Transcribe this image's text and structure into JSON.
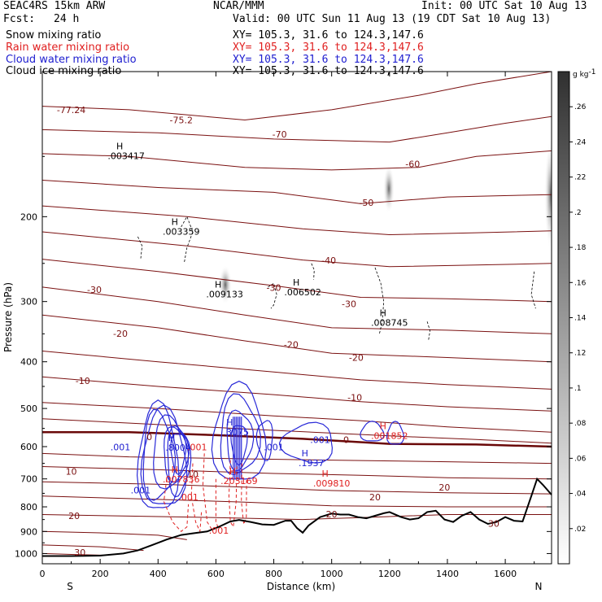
{
  "header": {
    "model": "SEAC4RS 15km ARW",
    "org": "NCAR/MMM",
    "init": "Init: 00 UTC Sat 10 Aug 13",
    "fcst_label": "Fcst:",
    "fcst_value": "24 h",
    "valid": "Valid: 00 UTC Sun 11 Aug 13 (19 CDT Sat 10 Aug 13)"
  },
  "legend": [
    {
      "label": "Snow mixing ratio",
      "xy": "XY= 105.3, 31.6 to 124.3,147.6",
      "color": "#000000"
    },
    {
      "label": "Rain water mixing ratio",
      "xy": "XY= 105.3, 31.6 to 124.3,147.6",
      "color": "#e02020"
    },
    {
      "label": "Cloud water mixing ratio",
      "xy": "XY= 105.3, 31.6 to 124.3,147.6",
      "color": "#2020d0"
    },
    {
      "label": "Cloud ice mixing ratio",
      "xy": "XY= 105.3, 31.6 to 124.3,147.6",
      "color": "#000000"
    }
  ],
  "colorbar": {
    "unit": "g kg",
    "unit_exp": "-1",
    "ticks": [
      ".26",
      ".24",
      ".22",
      ".2",
      ".18",
      ".16",
      ".14",
      ".12",
      ".1",
      ".08",
      ".06",
      ".04",
      ".02"
    ]
  },
  "chart_data": {
    "type": "cross-section",
    "xlabel": "Distance (km)",
    "ylabel": "Pressure (hPa)",
    "xlim": [
      0,
      1760
    ],
    "ylim": [
      1050,
      100
    ],
    "y_scale": "log",
    "x_ticks": [
      "0",
      "200",
      "400",
      "600",
      "800",
      "1000",
      "1200",
      "1400",
      "1600"
    ],
    "y_ticks": [
      "200",
      "300",
      "400",
      "500",
      "600",
      "700",
      "800",
      "900",
      "1000"
    ],
    "endpoint_left": "S",
    "endpoint_right": "N",
    "temperature_contours": [
      {
        "label": "-77.24",
        "x": 100,
        "y": 122
      },
      {
        "label": "-75.2",
        "x": 480,
        "y": 128
      },
      {
        "label": "-70",
        "x": 820,
        "y": 137
      },
      {
        "label": "-60",
        "x": 1280,
        "y": 158
      },
      {
        "label": "-50",
        "x": 1120,
        "y": 190
      },
      {
        "label": "-40",
        "x": 990,
        "y": 250
      },
      {
        "label": "-30",
        "x": 180,
        "y": 288
      },
      {
        "label": "-30",
        "x": 800,
        "y": 285
      },
      {
        "label": "-30",
        "x": 1060,
        "y": 308
      },
      {
        "label": "-20",
        "x": 270,
        "y": 355
      },
      {
        "label": "-20",
        "x": 860,
        "y": 374
      },
      {
        "label": "-20",
        "x": 1085,
        "y": 398
      },
      {
        "label": "-10",
        "x": 140,
        "y": 445
      },
      {
        "label": "-10",
        "x": 1080,
        "y": 482
      },
      {
        "label": "0",
        "x": 370,
        "y": 582
      },
      {
        "label": "0",
        "x": 1050,
        "y": 590
      },
      {
        "label": "10",
        "x": 100,
        "y": 686
      },
      {
        "label": "10",
        "x": 520,
        "y": 695
      },
      {
        "label": "20",
        "x": 110,
        "y": 848
      },
      {
        "label": "20",
        "x": 1000,
        "y": 842
      },
      {
        "label": "20",
        "x": 1150,
        "y": 775
      },
      {
        "label": "20",
        "x": 1390,
        "y": 740
      },
      {
        "label": "30",
        "x": 130,
        "y": 1010
      },
      {
        "label": "30",
        "x": 1560,
        "y": 880
      }
    ],
    "maxima": [
      {
        "label": ".003417",
        "x": 290,
        "y": 152,
        "color": "#000000"
      },
      {
        "label": ".003359",
        "x": 480,
        "y": 218,
        "color": "#000000"
      },
      {
        "label": ".009133",
        "x": 630,
        "y": 294,
        "color": "#000000"
      },
      {
        "label": ".006502",
        "x": 900,
        "y": 291,
        "color": "#000000"
      },
      {
        "label": ".008745",
        "x": 1200,
        "y": 337,
        "color": "#000000"
      },
      {
        "label": ".3075",
        "x": 670,
        "y": 568,
        "color": "#2020d0"
      },
      {
        "label": ".8004",
        "x": 470,
        "y": 612,
        "color": "#2020d0"
      },
      {
        "label": ".1937",
        "x": 930,
        "y": 658,
        "color": "#2020d0"
      },
      {
        "label": ".001852",
        "x": 1200,
        "y": 578,
        "color": "#e02020"
      },
      {
        "label": ".203169",
        "x": 680,
        "y": 718,
        "color": "#e02020"
      },
      {
        "label": ".009810",
        "x": 1000,
        "y": 726,
        "color": "#e02020"
      },
      {
        "label": ".007836",
        "x": 480,
        "y": 712,
        "color": "#e02020"
      }
    ],
    "cloud_water_labels": [
      {
        "label": ".001",
        "x": 270,
        "y": 610
      },
      {
        "label": ".001",
        "x": 340,
        "y": 750
      },
      {
        "label": ".001",
        "x": 800,
        "y": 610
      },
      {
        "label": ".001",
        "x": 960,
        "y": 590
      }
    ],
    "rain_water_labels": [
      {
        "label": ".001",
        "x": 535,
        "y": 610
      },
      {
        "label": ".001",
        "x": 505,
        "y": 775
      },
      {
        "label": ".001",
        "x": 610,
        "y": 910
      }
    ],
    "terrain_label": "Terrain"
  }
}
